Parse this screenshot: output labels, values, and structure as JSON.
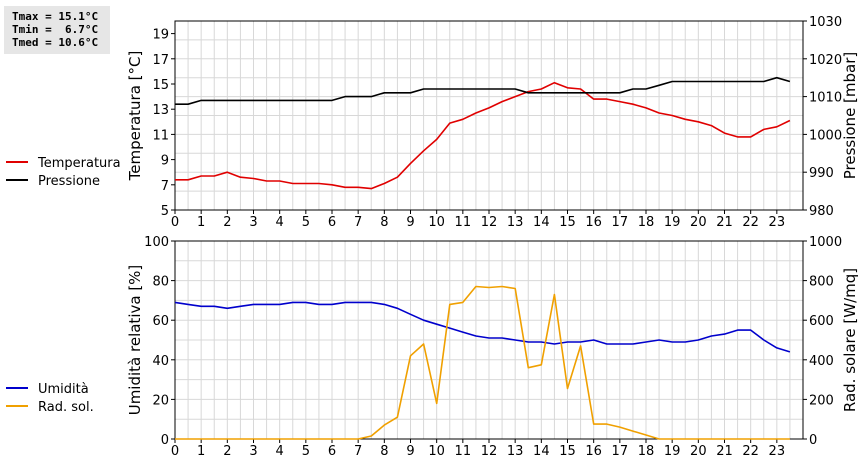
{
  "stats": {
    "tmax": "Tmax = 15.1°C",
    "tmin": "Tmin =  6.7°C",
    "tmed": "Tmed = 10.6°C"
  },
  "chart_data": [
    {
      "type": "line",
      "x_ticks": [
        "0",
        "1",
        "2",
        "3",
        "4",
        "5",
        "6",
        "7",
        "8",
        "9",
        "10",
        "11",
        "12",
        "13",
        "14",
        "15",
        "16",
        "17",
        "18",
        "19",
        "20",
        "21",
        "22",
        "23"
      ],
      "xlim": [
        0,
        24
      ],
      "ylabel": "Temperatura [°C]",
      "ylim": [
        5,
        20
      ],
      "y_ticks": [
        "5",
        "7",
        "9",
        "11",
        "13",
        "15",
        "17",
        "19"
      ],
      "ylabel_right": "Pressione [mbar]",
      "ylim_right": [
        980,
        1030
      ],
      "y_ticks_right": [
        "980",
        "990",
        "1000",
        "1010",
        "1020",
        "1030"
      ],
      "grid": true,
      "legend_position": "left",
      "series": [
        {
          "name": "Temperatura",
          "color": "#e00000",
          "axis": "left",
          "x": [
            0,
            0.5,
            1,
            1.5,
            2,
            2.5,
            3,
            3.5,
            4,
            4.5,
            5,
            5.5,
            6,
            6.5,
            7,
            7.5,
            8,
            8.5,
            9,
            9.5,
            10,
            10.5,
            11,
            11.5,
            12,
            12.5,
            13,
            13.5,
            14,
            14.5,
            15,
            15.5,
            16,
            16.5,
            17,
            17.5,
            18,
            18.5,
            19,
            19.5,
            20,
            20.5,
            21,
            21.5,
            22,
            22.5,
            23,
            23.5
          ],
          "values": [
            7.4,
            7.4,
            7.7,
            7.7,
            8.0,
            7.6,
            7.5,
            7.3,
            7.3,
            7.1,
            7.1,
            7.1,
            7.0,
            6.8,
            6.8,
            6.7,
            7.1,
            7.6,
            8.7,
            9.7,
            10.6,
            11.9,
            12.2,
            12.7,
            13.1,
            13.6,
            14.0,
            14.4,
            14.6,
            15.1,
            14.7,
            14.6,
            13.8,
            13.8,
            13.6,
            13.4,
            13.1,
            12.7,
            12.5,
            12.2,
            12.0,
            11.7,
            11.1,
            10.8,
            10.8,
            11.4,
            11.6,
            12.1
          ]
        },
        {
          "name": "Pressione",
          "color": "#000000",
          "axis": "right",
          "x": [
            0,
            0.5,
            1,
            1.5,
            2,
            2.5,
            3,
            3.5,
            4,
            4.5,
            5,
            5.5,
            6,
            6.5,
            7,
            7.5,
            8,
            8.5,
            9,
            9.5,
            10,
            10.5,
            11,
            11.5,
            12,
            12.5,
            13,
            13.5,
            14,
            14.5,
            15,
            15.5,
            16,
            16.5,
            17,
            17.5,
            18,
            18.5,
            19,
            19.5,
            20,
            20.5,
            21,
            21.5,
            22,
            22.5,
            23,
            23.5
          ],
          "values": [
            1008,
            1008,
            1009,
            1009,
            1009,
            1009,
            1009,
            1009,
            1009,
            1009,
            1009,
            1009,
            1009,
            1010,
            1010,
            1010,
            1011,
            1011,
            1011,
            1012,
            1012,
            1012,
            1012,
            1012,
            1012,
            1012,
            1012,
            1011,
            1011,
            1011,
            1011,
            1011,
            1011,
            1011,
            1011,
            1012,
            1012,
            1013,
            1014,
            1014,
            1014,
            1014,
            1014,
            1014,
            1014,
            1014,
            1015,
            1014
          ]
        }
      ]
    },
    {
      "type": "line",
      "x_ticks": [
        "0",
        "1",
        "2",
        "3",
        "4",
        "5",
        "6",
        "7",
        "8",
        "9",
        "10",
        "11",
        "12",
        "13",
        "14",
        "15",
        "16",
        "17",
        "18",
        "19",
        "20",
        "21",
        "22",
        "23"
      ],
      "xlim": [
        0,
        24
      ],
      "ylabel": "Umidità relativa [%]",
      "ylim": [
        0,
        100
      ],
      "y_ticks": [
        "0",
        "20",
        "40",
        "60",
        "80",
        "100"
      ],
      "ylabel_right": "Rad. solare [W/mq]",
      "ylim_right": [
        0,
        1000
      ],
      "y_ticks_right": [
        "0",
        "200",
        "400",
        "600",
        "800",
        "1000"
      ],
      "grid": true,
      "legend_position": "left",
      "series": [
        {
          "name": "Umidità",
          "color": "#0000cc",
          "axis": "left",
          "x": [
            0,
            0.5,
            1,
            1.5,
            2,
            2.5,
            3,
            3.5,
            4,
            4.5,
            5,
            5.5,
            6,
            6.5,
            7,
            7.5,
            8,
            8.5,
            9,
            9.5,
            10,
            10.5,
            11,
            11.5,
            12,
            12.5,
            13,
            13.5,
            14,
            14.5,
            15,
            15.5,
            16,
            16.5,
            17,
            17.5,
            18,
            18.5,
            19,
            19.5,
            20,
            20.5,
            21,
            21.5,
            22,
            22.5,
            23,
            23.5
          ],
          "values": [
            69,
            68,
            67,
            67,
            66,
            67,
            68,
            68,
            68,
            69,
            69,
            68,
            68,
            69,
            69,
            69,
            68,
            66,
            63,
            60,
            58,
            56,
            54,
            52,
            51,
            51,
            50,
            49,
            49,
            48,
            49,
            49,
            50,
            48,
            48,
            48,
            49,
            50,
            49,
            49,
            50,
            52,
            53,
            55,
            55,
            50,
            46,
            44
          ]
        },
        {
          "name": "Rad. sol.",
          "color": "#f0a000",
          "axis": "right",
          "x": [
            0,
            0.5,
            1,
            1.5,
            2,
            2.5,
            3,
            3.5,
            4,
            4.5,
            5,
            5.5,
            6,
            6.5,
            7,
            7.5,
            8,
            8.5,
            9,
            9.5,
            10,
            10.5,
            11,
            11.5,
            12,
            12.5,
            13,
            13.5,
            14,
            14.5,
            15,
            15.5,
            16,
            16.5,
            17,
            17.5,
            18,
            18.5,
            19,
            19.5,
            20,
            20.5,
            21,
            21.5,
            22,
            22.5,
            23,
            23.5
          ],
          "values": [
            0,
            0,
            0,
            0,
            0,
            0,
            0,
            0,
            0,
            0,
            0,
            0,
            0,
            0,
            0,
            15,
            70,
            110,
            420,
            480,
            180,
            680,
            690,
            770,
            765,
            770,
            760,
            360,
            375,
            730,
            255,
            470,
            75,
            75,
            60,
            40,
            20,
            0,
            0,
            0,
            0,
            0,
            0,
            0,
            0,
            0,
            0,
            0
          ]
        }
      ]
    }
  ]
}
